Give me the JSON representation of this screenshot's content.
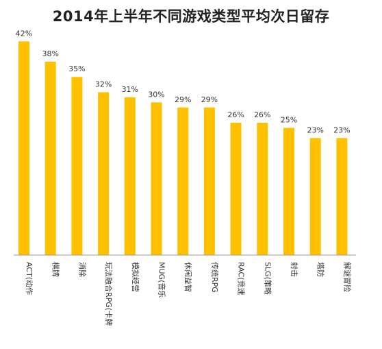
{
  "chart_data": {
    "type": "bar",
    "title": "2014年上半年不同游戏类型平均次日留存",
    "categories": [
      "ACT(动作",
      "棋牌",
      "消除",
      "玩法融合RPG(卡牌",
      "模拟经营",
      "MUG(音乐",
      "休闲益智",
      "传统RPG",
      "RAC(竞速",
      "SLG(策略",
      "射击",
      "塔防",
      "解谜冒险"
    ],
    "values": [
      42,
      38,
      35,
      32,
      31,
      30,
      29,
      29,
      26,
      26,
      25,
      23,
      23
    ],
    "data_labels": [
      "42%",
      "38%",
      "35%",
      "32%",
      "31%",
      "30%",
      "29%",
      "29%",
      "26%",
      "26%",
      "25%",
      "23%",
      "23%"
    ],
    "ylim": [
      0,
      45
    ],
    "grid": false,
    "legend": "none",
    "xlabel": "",
    "ylabel": "",
    "colors": {
      "bar": "#FFC000",
      "axis": "#999999",
      "text": "#333333"
    }
  }
}
